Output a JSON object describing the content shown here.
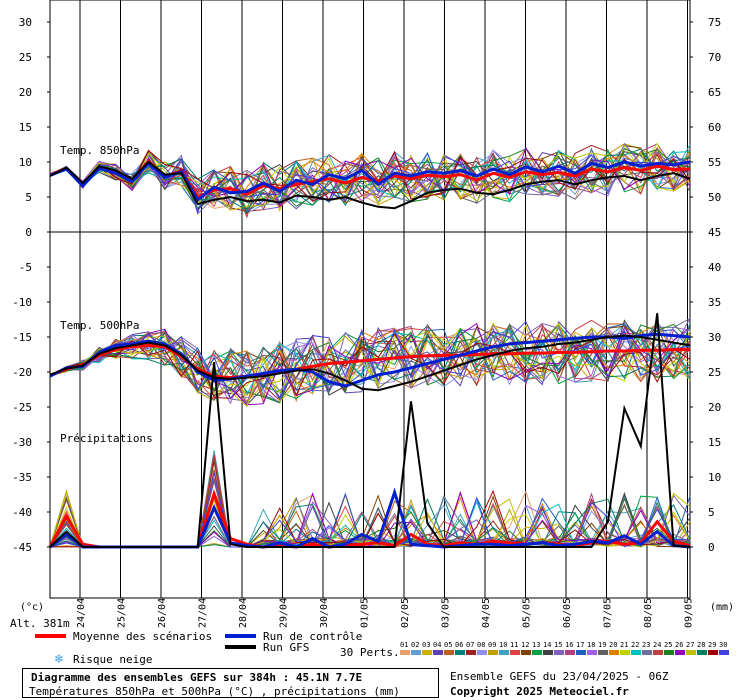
{
  "chart_data": {
    "type": "line",
    "title": "Diagramme des ensembles GEFS sur 384h : 45.1N 7.7E",
    "subtitle": "Températures 850hPa et 500hPa (°C) , précipitations (mm)",
    "run_info": "Ensemble GEFS du 23/04/2025 - 06Z",
    "copyright": "Copyright 2025 Meteociel.fr",
    "altitude": "Alt. 381m",
    "left_unit": "(°c)",
    "right_unit": "(mm)",
    "left_ticks": [
      "30",
      "25",
      "20",
      "15",
      "10",
      "5",
      "0",
      "-5",
      "-10",
      "-15",
      "-20",
      "-25",
      "-30",
      "-35",
      "-40",
      "-45"
    ],
    "right_ticks": [
      "75",
      "70",
      "65",
      "60",
      "55",
      "50",
      "45",
      "40",
      "35",
      "30",
      "25",
      "20",
      "15",
      "10",
      "5",
      "0"
    ],
    "x_labels": [
      "24/04",
      "25/04",
      "26/04",
      "27/04",
      "28/04",
      "29/04",
      "30/04",
      "01/05",
      "02/05",
      "03/05",
      "04/05",
      "05/05",
      "06/05",
      "07/05",
      "08/05",
      "09/05"
    ],
    "panel_labels": {
      "t850": "Temp. 850hPa",
      "t500": "Temp. 500hPa",
      "precip": "Précipitations"
    },
    "legend": {
      "mean": "Moyenne des scénarios",
      "control": "Run de contrôle",
      "gfs": "Run GFS",
      "snow": "Risque neige",
      "perts": "30 Perts."
    },
    "member_labels": [
      "01",
      "02",
      "03",
      "04",
      "05",
      "06",
      "07",
      "08",
      "09",
      "10",
      "11",
      "12",
      "13",
      "14",
      "15",
      "16",
      "17",
      "18",
      "19",
      "20",
      "21",
      "22",
      "23",
      "24",
      "25",
      "26",
      "27",
      "28",
      "29",
      "30"
    ],
    "member_colors": [
      "#e8a070",
      "#60a0d0",
      "#d0b000",
      "#6040b0",
      "#c06020",
      "#008080",
      "#a02020",
      "#9090f0",
      "#c0a000",
      "#40a0c0",
      "#e04040",
      "#804000",
      "#00a040",
      "#404040",
      "#8060c0",
      "#b04080",
      "#2060c0",
      "#a060e0",
      "#606060",
      "#e08000",
      "#c0d000",
      "#00c0c0",
      "#7070a0",
      "#c04040",
      "#208020",
      "#9000c0",
      "#c0c000",
      "#008060",
      "#a00000",
      "#4040e0"
    ],
    "mean_color": "#ff0000",
    "control_color": "#0020d0",
    "gfs_color": "#000000",
    "series": [
      {
        "name": "Moyenne des scénarios",
        "panel": "t850",
        "values": [
          8.2,
          9.1,
          6.8,
          9.3,
          8.6,
          7.4,
          10.1,
          8.0,
          8.7,
          5.0,
          6.0,
          6.2,
          5.4,
          6.6,
          6.2,
          6.8,
          7.2,
          7.6,
          7.0,
          7.8,
          7.2,
          8.0,
          7.6,
          8.1,
          7.9,
          8.2,
          7.4,
          8.4,
          7.8,
          8.6,
          8.2,
          8.5,
          8.0,
          9.0,
          8.6,
          9.2,
          8.8,
          9.4,
          8.9,
          9.0
        ]
      },
      {
        "name": "Run de contrôle",
        "panel": "t850",
        "values": [
          8.1,
          9.0,
          6.6,
          9.1,
          8.4,
          7.2,
          9.8,
          7.8,
          8.6,
          4.6,
          6.4,
          5.6,
          5.8,
          7.0,
          5.8,
          7.4,
          6.8,
          8.2,
          7.6,
          8.8,
          6.8,
          8.4,
          8.0,
          8.6,
          8.4,
          8.8,
          8.0,
          9.0,
          8.2,
          9.3,
          8.6,
          9.4,
          8.4,
          9.8,
          9.2,
          10.0,
          9.4,
          9.8,
          9.6,
          10.0
        ]
      },
      {
        "name": "Run GFS",
        "panel": "t850",
        "values": [
          8.0,
          9.2,
          7.0,
          9.4,
          8.8,
          7.6,
          10.0,
          8.2,
          8.4,
          4.0,
          4.6,
          5.0,
          4.4,
          4.6,
          4.2,
          5.2,
          5.0,
          4.6,
          5.0,
          4.2,
          3.6,
          3.4,
          4.4,
          5.6,
          6.0,
          6.2,
          5.6,
          5.4,
          6.0,
          6.8,
          7.2,
          7.4,
          6.8,
          7.4,
          7.8,
          8.0,
          7.4,
          8.0,
          8.4,
          7.6
        ]
      },
      {
        "name": "Moyenne des scénarios",
        "panel": "t500",
        "values": [
          -20.5,
          -19.6,
          -19.0,
          -17.6,
          -16.8,
          -16.4,
          -16.2,
          -16.4,
          -17.8,
          -19.6,
          -20.6,
          -20.8,
          -20.6,
          -20.4,
          -20.0,
          -19.6,
          -19.2,
          -18.8,
          -18.6,
          -18.4,
          -18.2,
          -18.0,
          -17.8,
          -17.7,
          -17.6,
          -17.6,
          -17.5,
          -17.4,
          -17.4,
          -17.3,
          -17.3,
          -17.2,
          -17.2,
          -17.1,
          -17.0,
          -17.0,
          -16.9,
          -16.9,
          -16.8,
          -16.8
        ]
      },
      {
        "name": "Run de contrôle",
        "panel": "t500",
        "values": [
          -20.6,
          -19.4,
          -19.2,
          -17.2,
          -16.2,
          -16.0,
          -15.6,
          -16.0,
          -17.4,
          -20.0,
          -21.2,
          -21.0,
          -20.6,
          -20.2,
          -19.8,
          -19.6,
          -20.0,
          -21.4,
          -22.0,
          -21.2,
          -20.4,
          -20.0,
          -19.4,
          -18.8,
          -18.2,
          -17.6,
          -17.0,
          -16.4,
          -16.0,
          -15.8,
          -15.6,
          -15.4,
          -15.2,
          -15.0,
          -15.0,
          -15.2,
          -14.8,
          -14.6,
          -14.8,
          -15.0
        ]
      },
      {
        "name": "Run GFS",
        "panel": "t500",
        "values": [
          -20.4,
          -19.5,
          -19.1,
          -17.4,
          -16.6,
          -16.2,
          -15.8,
          -16.2,
          -17.6,
          -19.8,
          -20.8,
          -21.0,
          -20.8,
          -20.6,
          -20.2,
          -19.8,
          -19.6,
          -20.2,
          -21.2,
          -22.4,
          -22.6,
          -22.0,
          -21.4,
          -20.6,
          -19.8,
          -19.0,
          -18.2,
          -17.6,
          -17.0,
          -16.6,
          -16.4,
          -16.0,
          -15.8,
          -15.4,
          -15.0,
          -14.8,
          -15.0,
          -15.4,
          -15.8,
          -16.2
        ]
      },
      {
        "name": "Moyenne des scénarios",
        "panel": "precip",
        "values": [
          0,
          4.4,
          0.4,
          0,
          0,
          0,
          0,
          0,
          0,
          0,
          7.6,
          1.2,
          0.4,
          0,
          0.2,
          0,
          0.4,
          0,
          0.2,
          0.4,
          0.6,
          0.2,
          1.8,
          0.4,
          0.2,
          0.6,
          0.4,
          0.8,
          0.6,
          0.4,
          0.6,
          0.4,
          0.2,
          0.6,
          0.8,
          0.4,
          0.6,
          3.6,
          0.8,
          0.2
        ]
      },
      {
        "name": "Run de contrôle",
        "panel": "precip",
        "values": [
          0,
          1.8,
          0,
          0,
          0,
          0,
          0,
          0,
          0,
          0,
          5.6,
          0.6,
          0.2,
          0,
          0.6,
          0,
          1.2,
          0,
          0.4,
          1.8,
          0.8,
          7.8,
          0.4,
          0.2,
          0,
          0.2,
          0.4,
          0.4,
          0.2,
          0.4,
          0.6,
          0.2,
          0.4,
          0.8,
          0.6,
          1.6,
          0.4,
          2.2,
          0.2,
          0
        ]
      },
      {
        "name": "Run GFS",
        "panel": "precip",
        "values": [
          0,
          2.2,
          0,
          0,
          0,
          0,
          0,
          0,
          0,
          0,
          26.4,
          0.4,
          0,
          0,
          0,
          0,
          0,
          0,
          0,
          0,
          0,
          0,
          20.8,
          3.4,
          0,
          0,
          0,
          0,
          0,
          0,
          0,
          0,
          0,
          0,
          3.6,
          19.8,
          14.4,
          33.4,
          0.2,
          0
        ]
      }
    ]
  }
}
